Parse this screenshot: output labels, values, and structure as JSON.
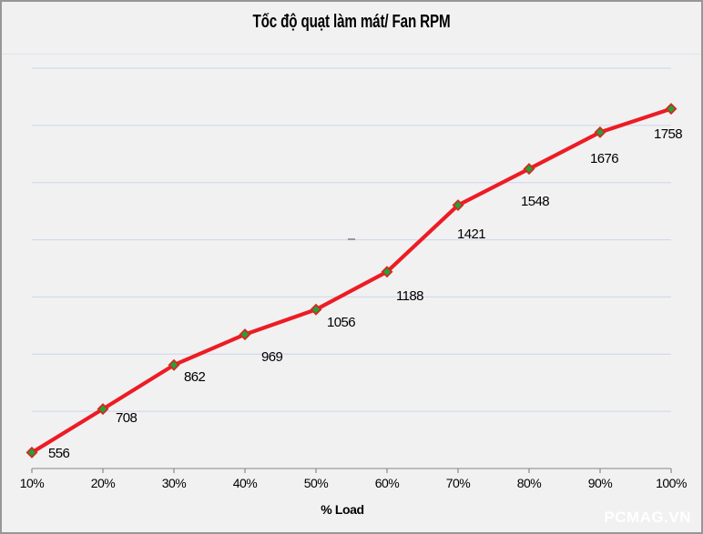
{
  "title": "Tốc độ quạt làm mát/ Fan RPM",
  "watermark": "PCMAG.VN",
  "chart_data": {
    "type": "line",
    "title": "Tốc độ quạt làm mát/ Fan RPM",
    "xlabel": "% Load",
    "ylabel": "",
    "categories": [
      "10%",
      "20%",
      "30%",
      "40%",
      "50%",
      "60%",
      "70%",
      "80%",
      "90%",
      "100%"
    ],
    "series": [
      {
        "name": "Fan RPM",
        "values": [
          556,
          708,
          862,
          969,
          1056,
          1188,
          1421,
          1548,
          1676,
          1758
        ]
      }
    ],
    "data_labels": [
      556,
      708,
      862,
      969,
      1056,
      1188,
      1421,
      1548,
      1676,
      1758
    ],
    "ylim": [
      500,
      1900
    ],
    "grid_step": 200,
    "grid": true,
    "legend_position": "none",
    "colors": {
      "line": "#ed1c24",
      "marker_fill": "#1ea43b",
      "marker_border": "#d42a1c",
      "gridline": "#ccd6ea",
      "axis": "#9d9d9d",
      "tick": "#8a8a8a",
      "background": "#f1f1f2",
      "text": "#000000",
      "watermark_text": "#ffffff"
    }
  }
}
